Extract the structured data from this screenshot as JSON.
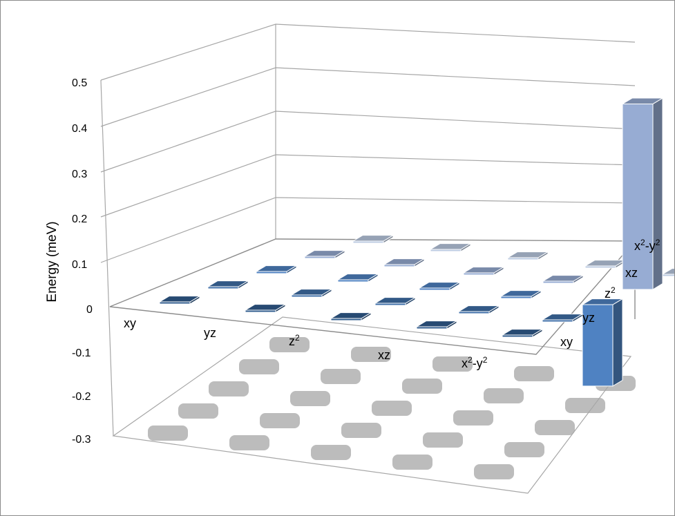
{
  "chart_data": {
    "type": "bar3d",
    "ylabel": "Energy (meV)",
    "y_ticks": [
      "0.5",
      "0.4",
      "0.3",
      "0.2",
      "0.1",
      "0",
      "-0.1",
      "-0.2",
      "-0.3"
    ],
    "ylim": [
      -0.3,
      0.5
    ],
    "row_labels": [
      {
        "base": "xy",
        "sup": ""
      },
      {
        "base": "yz",
        "sup": ""
      },
      {
        "base": "z",
        "sup": "2"
      },
      {
        "base": "xz",
        "sup": ""
      },
      {
        "base": "x",
        "sup": "2",
        "rest": "-y",
        "sup2": "2"
      }
    ],
    "column_labels": [
      {
        "base": "xy",
        "sup": ""
      },
      {
        "base": "yz",
        "sup": ""
      },
      {
        "base": "z",
        "sup": "2"
      },
      {
        "base": "xz",
        "sup": ""
      },
      {
        "base": "x",
        "sup": "2",
        "rest": "-y",
        "sup2": "2"
      }
    ],
    "series_colors": [
      "#315d8e",
      "#3f6fa8",
      "#4f82c2",
      "#97acd3",
      "#bccbe2"
    ],
    "values": [
      [
        0.0,
        0.0,
        0.0,
        0.0,
        0.0
      ],
      [
        0.0,
        0.0,
        0.0,
        0.0,
        0.0
      ],
      [
        0.0,
        0.0,
        0.0,
        0.0,
        -0.18
      ],
      [
        0.0,
        0.0,
        0.0,
        0.0,
        0.41
      ],
      [
        0.0,
        0.0,
        0.0,
        0.0,
        0.0
      ]
    ]
  }
}
